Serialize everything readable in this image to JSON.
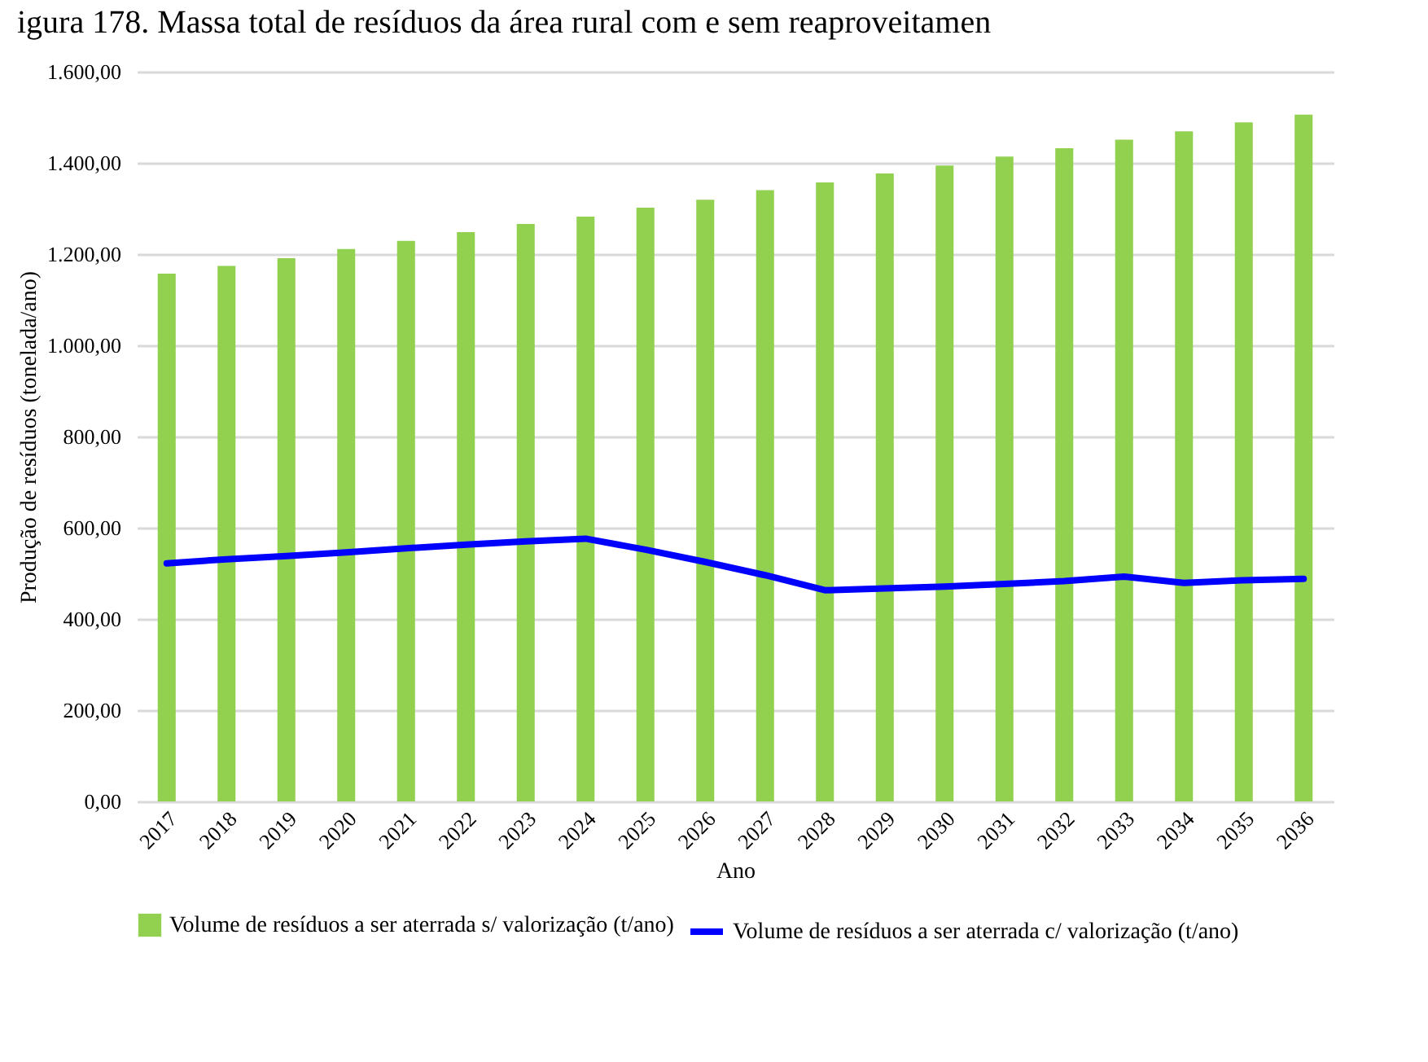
{
  "chart_data": {
    "type": "bar",
    "title": "igura 178. Massa total de resíduos da área rural com e sem reaproveitamen",
    "xlabel": "Ano",
    "ylabel": "Produção de resíduos (tonelada/ano)",
    "categories": [
      "2017",
      "2018",
      "2019",
      "2020",
      "2021",
      "2022",
      "2023",
      "2024",
      "2025",
      "2026",
      "2027",
      "2028",
      "2029",
      "2030",
      "2031",
      "2032",
      "2033",
      "2034",
      "2035",
      "2036"
    ],
    "series": [
      {
        "name": "Volume de resíduos a ser aterrada s/ valorização (t/ano)",
        "color": "#92d050",
        "values": [
          1157,
          1174,
          1191,
          1211,
          1229,
          1248,
          1266,
          1282,
          1302,
          1319,
          1340,
          1357,
          1377,
          1394,
          1414,
          1432,
          1451,
          1469,
          1489,
          1506
        ]
      },
      {
        "name": "Volume de resíduos a ser aterrada c/ valorização (t/ano)",
        "type": "line",
        "color": "#0000ff",
        "values": [
          522,
          531,
          538,
          546,
          555,
          563,
          570,
          576,
          552,
          525,
          496,
          463,
          467,
          471,
          477,
          483,
          493,
          479,
          485,
          488
        ]
      }
    ],
    "ylim": [
      0,
      1600
    ],
    "yticks": [
      {
        "value": 0,
        "label": "0,00"
      },
      {
        "value": 200,
        "label": "200,00"
      },
      {
        "value": 400,
        "label": "400,00"
      },
      {
        "value": 600,
        "label": "600,00"
      },
      {
        "value": 800,
        "label": "800,00"
      },
      {
        "value": 1000,
        "label": "1.000,00"
      },
      {
        "value": 1200,
        "label": "1.200,00"
      },
      {
        "value": 1400,
        "label": "1.400,00"
      },
      {
        "value": 1600,
        "label": "1.600,00"
      }
    ],
    "grid": "y",
    "legend": "bottom"
  }
}
